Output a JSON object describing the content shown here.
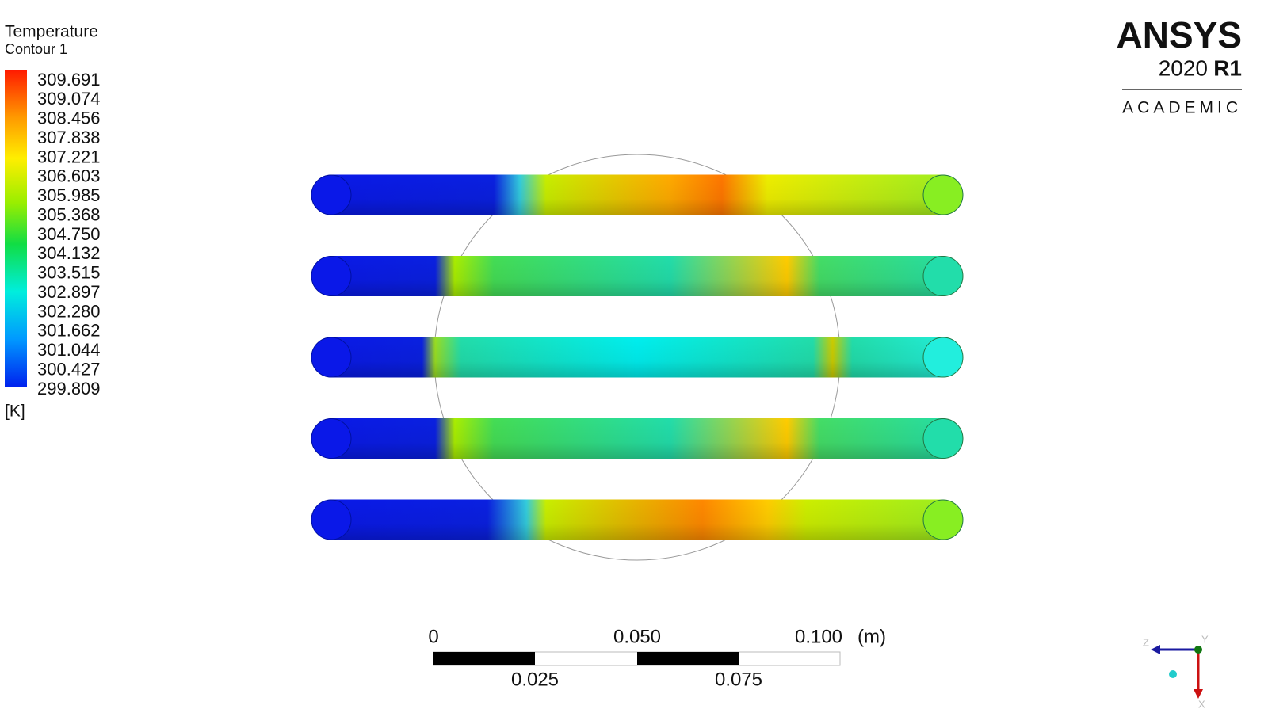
{
  "legend": {
    "title": "Temperature",
    "subtitle": "Contour 1",
    "levels": [
      "309.691",
      "309.074",
      "308.456",
      "307.838",
      "307.221",
      "306.603",
      "305.985",
      "305.368",
      "304.750",
      "304.132",
      "303.515",
      "302.897",
      "302.280",
      "301.662",
      "301.044",
      "300.427",
      "299.809"
    ],
    "unit": "[K]"
  },
  "logo": {
    "brand": "ANSYS",
    "version": "2020",
    "release": "R1",
    "edition": "ACADEMIC"
  },
  "scale_bar": {
    "top_labels": [
      "0",
      "0.050",
      "0.100"
    ],
    "unit": "(m)",
    "bottom_labels": [
      "0.025",
      "0.075"
    ]
  },
  "triad": {
    "z": "Z",
    "y": "Y",
    "x": "X"
  }
}
